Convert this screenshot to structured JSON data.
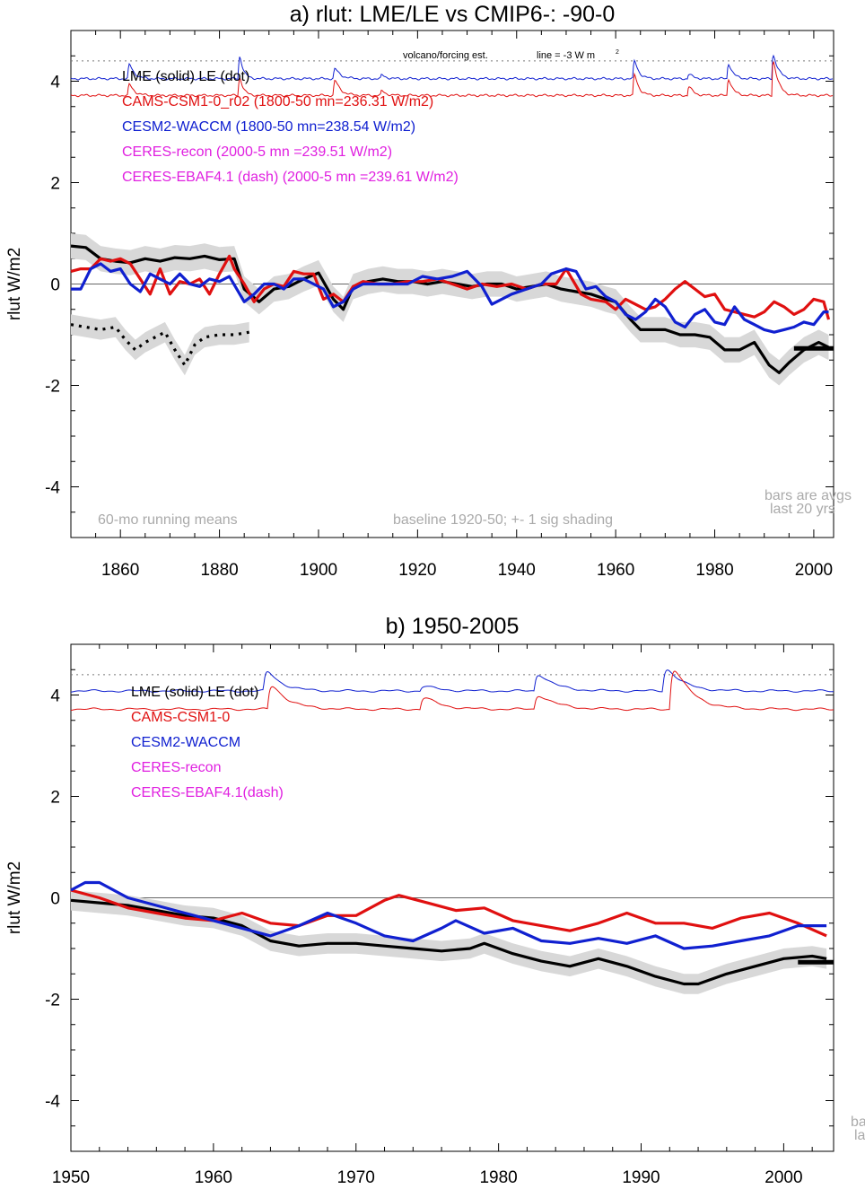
{
  "colors": {
    "lme": "#000000",
    "cams": "#e01010",
    "cesm": "#1020d0",
    "ceres": "#e020e0",
    "shade": "#d8d8d8",
    "note": "#aaaaaa"
  },
  "chart_data": [
    {
      "type": "line",
      "title": "a) rlut: LME/LE vs CMIP6-: -90-0",
      "ylabel": "rlut W/m2",
      "xlim": [
        1850,
        2004
      ],
      "ylim": [
        -5,
        5
      ],
      "xticks": [
        1860,
        1880,
        1900,
        1920,
        1940,
        1960,
        1980,
        2000
      ],
      "yticks": [
        -4,
        -2,
        0,
        2,
        4
      ],
      "legend": {
        "header": "LME (solid)   LE (dot)",
        "items": [
          {
            "text": "CAMS-CSM1-0_r02 (1800-50 mn=236.31 W/m2)",
            "color": "cams"
          },
          {
            "text": "CESM2-WACCM (1800-50 mn=238.54 W/m2)",
            "color": "cesm"
          },
          {
            "text": "CERES-recon (2000-5 mn =239.51 W/m2)",
            "color": "ceres"
          },
          {
            "text": "CERES-EBAF4.1 (dash) (2000-5 mn =239.61 W/m2)",
            "color": "ceres"
          }
        ]
      },
      "annotations": {
        "volcano": "volcano/forcing est.",
        "line": "line = -3 W m",
        "running": "60-mo running means",
        "baseline": "baseline 1920-50; +- 1 sig shading",
        "bars1": "bars are avgs",
        "bars2": "last 20 yrs"
      },
      "dotted_ref": 4.4,
      "bar": {
        "x": [
          1996,
          2004
        ],
        "y": -1.27
      },
      "series": [
        {
          "name": "LME (solid)",
          "color": "lme",
          "width": 3.2,
          "shade": 0.25,
          "x": [
            1850,
            1853,
            1856,
            1859,
            1862,
            1865,
            1868,
            1871,
            1874,
            1877,
            1880,
            1883,
            1885,
            1888,
            1891,
            1894,
            1897,
            1900,
            1903,
            1905,
            1907,
            1910,
            1913,
            1916,
            1919,
            1922,
            1925,
            1928,
            1931,
            1934,
            1937,
            1940,
            1943,
            1946,
            1949,
            1952,
            1955,
            1958,
            1960,
            1963,
            1965,
            1967,
            1970,
            1973,
            1976,
            1979,
            1982,
            1985,
            1988,
            1991,
            1993,
            1995,
            1998,
            2001,
            2003
          ],
          "y": [
            0.75,
            0.72,
            0.5,
            0.45,
            0.42,
            0.5,
            0.45,
            0.52,
            0.5,
            0.55,
            0.48,
            0.5,
            -0.1,
            -0.35,
            -0.1,
            -0.05,
            0.1,
            0.22,
            -0.3,
            -0.5,
            -0.05,
            0.05,
            0.1,
            0.05,
            0.05,
            0.0,
            0.05,
            0.0,
            -0.05,
            0.0,
            0.0,
            -0.1,
            -0.05,
            0.0,
            -0.1,
            -0.15,
            -0.2,
            -0.3,
            -0.35,
            -0.7,
            -0.9,
            -0.9,
            -0.9,
            -1.0,
            -1.0,
            -1.05,
            -1.3,
            -1.3,
            -1.15,
            -1.6,
            -1.75,
            -1.55,
            -1.3,
            -1.15,
            -1.25
          ]
        },
        {
          "name": "LE (dot)",
          "color": "lme",
          "width": 3.2,
          "dash": "3,6",
          "shade": 0.2,
          "x": [
            1850,
            1853,
            1856,
            1859,
            1861,
            1863,
            1865,
            1867,
            1869,
            1871,
            1873,
            1875,
            1877,
            1880,
            1883,
            1886
          ],
          "y": [
            -0.8,
            -0.85,
            -0.9,
            -0.85,
            -1.1,
            -1.3,
            -1.15,
            -1.05,
            -0.95,
            -1.3,
            -1.6,
            -1.2,
            -1.05,
            -1.0,
            -1.0,
            -0.95
          ]
        },
        {
          "name": "CAMS-CSM1-0_r02",
          "color": "cams",
          "width": 3.2,
          "x": [
            1850,
            1852,
            1854,
            1856,
            1858,
            1860,
            1862,
            1864,
            1866,
            1868,
            1870,
            1872,
            1874,
            1876,
            1878,
            1880,
            1882,
            1883,
            1885,
            1887,
            1889,
            1891,
            1893,
            1895,
            1897,
            1899,
            1901,
            1903,
            1905,
            1907,
            1909,
            1912,
            1915,
            1918,
            1921,
            1924,
            1927,
            1930,
            1933,
            1936,
            1939,
            1942,
            1945,
            1948,
            1950,
            1953,
            1955,
            1958,
            1960,
            1962,
            1964,
            1966,
            1968,
            1970,
            1972,
            1974,
            1976,
            1978,
            1980,
            1982,
            1984,
            1986,
            1988,
            1990,
            1992,
            1994,
            1996,
            1998,
            2000,
            2002,
            2003
          ],
          "y": [
            0.25,
            0.3,
            0.3,
            0.5,
            0.45,
            0.5,
            0.4,
            0.1,
            -0.2,
            0.3,
            -0.2,
            0.05,
            0.0,
            0.1,
            -0.2,
            0.2,
            0.55,
            0.3,
            0.0,
            -0.35,
            -0.1,
            0.0,
            -0.05,
            0.25,
            0.2,
            0.2,
            -0.3,
            -0.2,
            -0.35,
            -0.05,
            0.05,
            0.0,
            0.0,
            0.05,
            0.05,
            0.1,
            0.0,
            -0.1,
            0.0,
            -0.05,
            0.0,
            -0.1,
            0.0,
            0.0,
            0.3,
            -0.2,
            -0.3,
            -0.35,
            -0.5,
            -0.3,
            -0.4,
            -0.5,
            -0.45,
            -0.3,
            -0.1,
            0.05,
            -0.1,
            -0.25,
            -0.2,
            -0.5,
            -0.55,
            -0.6,
            -0.65,
            -0.55,
            -0.35,
            -0.45,
            -0.6,
            -0.5,
            -0.3,
            -0.35,
            -0.7
          ]
        },
        {
          "name": "CESM2-WACCM",
          "color": "cesm",
          "width": 3.2,
          "x": [
            1850,
            1852,
            1854,
            1856,
            1858,
            1860,
            1862,
            1864,
            1866,
            1868,
            1870,
            1872,
            1874,
            1876,
            1878,
            1880,
            1882,
            1885,
            1887,
            1889,
            1891,
            1893,
            1895,
            1897,
            1899,
            1901,
            1903,
            1905,
            1907,
            1909,
            1912,
            1915,
            1918,
            1921,
            1924,
            1927,
            1930,
            1933,
            1935,
            1937,
            1939,
            1942,
            1945,
            1947,
            1950,
            1952,
            1954,
            1956,
            1958,
            1960,
            1962,
            1964,
            1966,
            1968,
            1970,
            1972,
            1974,
            1976,
            1978,
            1980,
            1982,
            1984,
            1986,
            1988,
            1990,
            1992,
            1994,
            1996,
            1998,
            2000,
            2002,
            2003
          ],
          "y": [
            -0.1,
            -0.1,
            0.3,
            0.4,
            0.25,
            0.3,
            0.0,
            -0.15,
            0.2,
            0.1,
            0.0,
            0.2,
            0.0,
            -0.05,
            0.1,
            0.05,
            0.15,
            -0.35,
            -0.2,
            0.0,
            0.0,
            -0.1,
            0.1,
            0.1,
            0.0,
            -0.1,
            -0.45,
            -0.35,
            -0.1,
            0.0,
            0.0,
            0.0,
            0.0,
            0.15,
            0.1,
            0.15,
            0.25,
            -0.05,
            -0.4,
            -0.3,
            -0.2,
            -0.1,
            0.0,
            0.2,
            0.3,
            0.25,
            -0.1,
            -0.05,
            -0.25,
            -0.35,
            -0.6,
            -0.7,
            -0.55,
            -0.3,
            -0.45,
            -0.75,
            -0.85,
            -0.6,
            -0.5,
            -0.75,
            -0.8,
            -0.45,
            -0.7,
            -0.8,
            -0.9,
            -0.95,
            -0.9,
            -0.85,
            -0.75,
            -0.8,
            -0.55,
            -0.55
          ]
        }
      ],
      "forcing": [
        {
          "name": "CESM2-WACCM",
          "color": "cesm",
          "base": 4.05,
          "peaks": [
            [
              1861.5,
              0.45,
              0.7
            ],
            [
              1883.8,
              0.8,
              0.5
            ],
            [
              1903,
              0.3,
              0.8
            ],
            [
              1912.5,
              0.12,
              0.6
            ],
            [
              1963.5,
              0.6,
              0.6
            ],
            [
              1974.5,
              0.15,
              0.6
            ],
            [
              1982.5,
              0.5,
              0.6
            ],
            [
              1991.5,
              0.75,
              0.7
            ]
          ]
        },
        {
          "name": "CAMS-CSM1-0_r02",
          "color": "cams",
          "base": 3.72,
          "peaks": [
            [
              1861.5,
              0.35,
              0.7
            ],
            [
              1883.8,
              0.65,
              0.5
            ],
            [
              1903,
              0.45,
              0.8
            ],
            [
              1912.5,
              0.15,
              0.6
            ],
            [
              1963.5,
              0.7,
              0.6
            ],
            [
              1974.5,
              0.3,
              0.6
            ],
            [
              1982.5,
              0.55,
              0.6
            ],
            [
              1991.5,
              1.1,
              0.7
            ]
          ]
        }
      ]
    },
    {
      "type": "line",
      "title": "b) 1950-2005",
      "ylabel": "rlut W/m2",
      "xlim": [
        1950,
        2003.5
      ],
      "ylim": [
        -5,
        5
      ],
      "xticks": [
        1950,
        1960,
        1970,
        1980,
        1990,
        2000
      ],
      "yticks": [
        -4,
        -2,
        0,
        2,
        4
      ],
      "legend": {
        "header": "LME (solid)       LE (dot)",
        "items": [
          {
            "text": "CAMS-CSM1-0",
            "color": "cams"
          },
          {
            "text": "CESM2-WACCM",
            "color": "cesm"
          },
          {
            "text": "CERES-recon",
            "color": "ceres"
          },
          {
            "text": "CERES-EBAF4.1(dash)",
            "color": "ceres"
          }
        ]
      },
      "annotations": {
        "bars1": "ba",
        "bars2": "la"
      },
      "dotted_ref": 4.4,
      "bar": {
        "x": [
          2001,
          2003.5
        ],
        "y": -1.27
      },
      "series": [
        {
          "name": "LME (solid)",
          "color": "lme",
          "width": 3.2,
          "shade": 0.2,
          "x": [
            1950,
            1952,
            1954,
            1956,
            1958,
            1960,
            1962,
            1964,
            1966,
            1968,
            1970,
            1972,
            1974,
            1976,
            1978,
            1979,
            1981,
            1983,
            1985,
            1987,
            1989,
            1991,
            1993,
            1994,
            1996,
            1998,
            2000,
            2002,
            2003
          ],
          "y": [
            -0.05,
            -0.1,
            -0.15,
            -0.25,
            -0.35,
            -0.4,
            -0.55,
            -0.85,
            -0.95,
            -0.9,
            -0.9,
            -0.95,
            -1.0,
            -1.05,
            -1.0,
            -0.9,
            -1.1,
            -1.25,
            -1.35,
            -1.2,
            -1.35,
            -1.55,
            -1.7,
            -1.7,
            -1.5,
            -1.35,
            -1.2,
            -1.15,
            -1.2
          ]
        },
        {
          "name": "CAMS-CSM1-0",
          "color": "cams",
          "width": 3.2,
          "x": [
            1950,
            1952,
            1954,
            1956,
            1958,
            1960,
            1962,
            1964,
            1966,
            1968,
            1970,
            1972,
            1973,
            1975,
            1977,
            1979,
            1981,
            1983,
            1985,
            1987,
            1989,
            1991,
            1993,
            1995,
            1997,
            1999,
            2001,
            2003
          ],
          "y": [
            0.15,
            0.0,
            -0.2,
            -0.3,
            -0.4,
            -0.45,
            -0.3,
            -0.5,
            -0.55,
            -0.35,
            -0.35,
            -0.05,
            0.05,
            -0.1,
            -0.25,
            -0.2,
            -0.45,
            -0.55,
            -0.65,
            -0.5,
            -0.3,
            -0.5,
            -0.5,
            -0.6,
            -0.4,
            -0.3,
            -0.5,
            -0.75
          ]
        },
        {
          "name": "CESM2-WACCM",
          "color": "cesm",
          "width": 3.2,
          "x": [
            1950,
            1951,
            1952,
            1954,
            1956,
            1958,
            1960,
            1962,
            1964,
            1966,
            1968,
            1970,
            1972,
            1974,
            1976,
            1977,
            1979,
            1981,
            1983,
            1985,
            1987,
            1989,
            1991,
            1993,
            1995,
            1997,
            1999,
            2001,
            2003
          ],
          "y": [
            0.15,
            0.3,
            0.3,
            0.0,
            -0.15,
            -0.3,
            -0.45,
            -0.6,
            -0.75,
            -0.55,
            -0.3,
            -0.5,
            -0.75,
            -0.85,
            -0.6,
            -0.45,
            -0.7,
            -0.6,
            -0.85,
            -0.9,
            -0.8,
            -0.9,
            -0.75,
            -1.0,
            -0.95,
            -0.85,
            -0.75,
            -0.55,
            -0.55
          ]
        }
      ],
      "forcing": [
        {
          "name": "CESM2-WACCM",
          "color": "cesm",
          "base": 4.08,
          "peaks": [
            [
              1963.5,
              0.6,
              0.7
            ],
            [
              1974.5,
              0.15,
              0.7
            ],
            [
              1982.5,
              0.5,
              0.8
            ],
            [
              1991.5,
              0.65,
              0.8
            ]
          ]
        },
        {
          "name": "CAMS-CSM1-0",
          "color": "cams",
          "base": 3.72,
          "peaks": [
            [
              1963.8,
              0.7,
              0.8
            ],
            [
              1974.5,
              0.35,
              0.8
            ],
            [
              1982.5,
              0.4,
              0.9
            ],
            [
              1992,
              1.15,
              0.9
            ]
          ]
        }
      ]
    }
  ]
}
